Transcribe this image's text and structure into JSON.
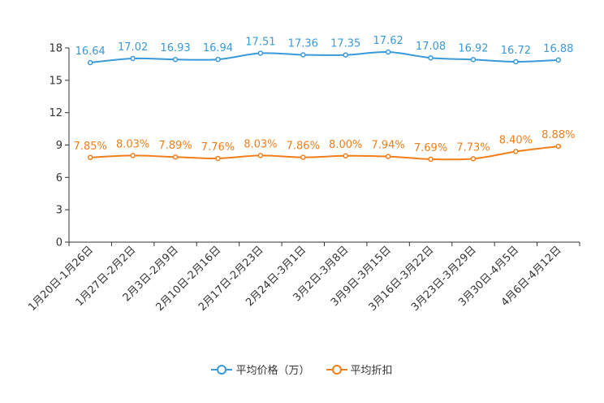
{
  "chart_data": {
    "type": "line",
    "categories": [
      "1月20日-1月26日",
      "1月27日-2月2日",
      "2月3日-2月9日",
      "2月10日-2月16日",
      "2月17日-2月23日",
      "2月24日-3月1日",
      "3月2日-3月8日",
      "3月9日-3月15日",
      "3月16日-3月22日",
      "3月23日-3月29日",
      "3月30日-4月5日",
      "4月6日-4月12日"
    ],
    "series": [
      {
        "name": "平均价格（万）",
        "color": "#3a9ad9",
        "values": [
          16.64,
          17.02,
          16.93,
          16.94,
          17.51,
          17.36,
          17.35,
          17.62,
          17.08,
          16.92,
          16.72,
          16.88
        ],
        "labels": [
          "16.64",
          "17.02",
          "16.93",
          "16.94",
          "17.51",
          "17.36",
          "17.35",
          "17.62",
          "17.08",
          "16.92",
          "16.72",
          "16.88"
        ]
      },
      {
        "name": "平均折扣",
        "color": "#f07f1b",
        "values": [
          7.85,
          8.03,
          7.89,
          7.76,
          8.03,
          7.86,
          8.0,
          7.94,
          7.69,
          7.73,
          8.4,
          8.88
        ],
        "labels": [
          "7.85%",
          "8.03%",
          "7.89%",
          "7.76%",
          "8.03%",
          "7.86%",
          "8.00%",
          "7.94%",
          "7.69%",
          "7.73%",
          "8.40%",
          "8.88%"
        ]
      }
    ],
    "yticks": [
      "0",
      "3",
      "6",
      "9",
      "12",
      "15",
      "18"
    ],
    "ylim": [
      0,
      18
    ],
    "title": "",
    "xlabel": "",
    "ylabel": "",
    "legend": "bottom"
  }
}
